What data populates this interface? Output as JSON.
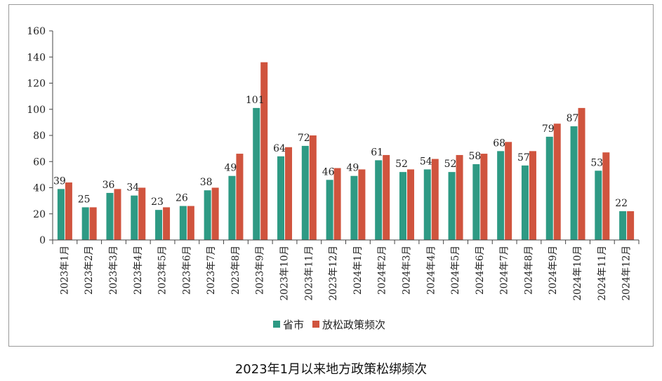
{
  "caption": "2023年1月以来地方政策松绑频次",
  "chart_data": {
    "type": "bar",
    "categories": [
      "2023年1月",
      "2023年2月",
      "2023年3月",
      "2023年4月",
      "2023年5月",
      "2023年6月",
      "2023年7月",
      "2023年8月",
      "2023年9月",
      "2023年10月",
      "2023年11月",
      "2023年12月",
      "2024年1月",
      "2024年2月",
      "2024年3月",
      "2024年4月",
      "2024年5月",
      "2024年6月",
      "2024年7月",
      "2024年8月",
      "2024年9月",
      "2024年10月",
      "2024年11月",
      "2024年12月"
    ],
    "series": [
      {
        "name": "省市",
        "color": "#2e9a84",
        "labeled": true,
        "values": [
          39,
          25,
          36,
          34,
          23,
          26,
          38,
          49,
          101,
          64,
          72,
          46,
          49,
          61,
          52,
          54,
          52,
          58,
          68,
          57,
          79,
          87,
          53,
          22
        ]
      },
      {
        "name": "放松政策频次",
        "color": "#d0543e",
        "labeled": false,
        "values": [
          44,
          25,
          39,
          40,
          25,
          26,
          40,
          66,
          136,
          71,
          80,
          55,
          54,
          65,
          54,
          62,
          65,
          66,
          75,
          68,
          89,
          101,
          67,
          22
        ]
      }
    ],
    "yticks": [
      0,
      20,
      40,
      60,
      80,
      100,
      120,
      140,
      160
    ],
    "ylim": [
      0,
      160
    ],
    "legend_position": "bottom-center",
    "grid": false
  }
}
